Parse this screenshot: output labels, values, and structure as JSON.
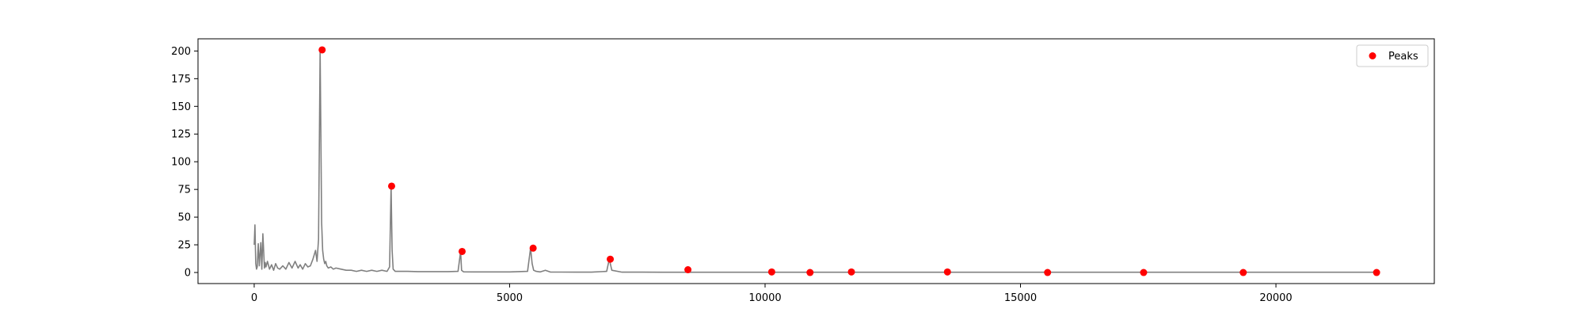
{
  "chart_data": {
    "type": "line",
    "title": "",
    "xlabel": "",
    "ylabel": "",
    "xlim": [
      -1100,
      23100
    ],
    "ylim": [
      -10,
      211
    ],
    "xticks": [
      0,
      5000,
      10000,
      15000,
      20000
    ],
    "yticks": [
      0,
      25,
      50,
      75,
      100,
      125,
      150,
      175,
      200
    ],
    "grid": false,
    "legend": {
      "position": "top-right",
      "entries": [
        "Peaks"
      ]
    },
    "series": [
      {
        "kind": "line",
        "color": "#808080",
        "x": [
          0,
          15,
          30,
          45,
          60,
          80,
          100,
          130,
          150,
          170,
          200,
          215,
          230,
          260,
          300,
          340,
          380,
          420,
          460,
          500,
          560,
          620,
          680,
          740,
          800,
          860,
          900,
          950,
          1000,
          1050,
          1100,
          1150,
          1200,
          1230,
          1260,
          1290,
          1320,
          1340,
          1360,
          1380,
          1400,
          1420,
          1450,
          1500,
          1550,
          1600,
          1700,
          1800,
          1900,
          2000,
          2100,
          2200,
          2300,
          2400,
          2500,
          2600,
          2650,
          2680,
          2700,
          2720,
          2760,
          2850,
          3000,
          3200,
          3500,
          3800,
          3990,
          4040,
          4060,
          4100,
          4300,
          4600,
          5000,
          5350,
          5410,
          5440,
          5470,
          5520,
          5600,
          5700,
          5800,
          6000,
          6300,
          6600,
          6900,
          6950,
          7000,
          7200,
          7600,
          8000,
          8400,
          9000,
          10000,
          11000,
          12000,
          13000,
          14000,
          15000,
          16000,
          17000,
          18000,
          19000,
          20000,
          21000,
          22000
        ],
        "y": [
          25,
          43,
          8,
          3,
          5,
          26,
          6,
          27,
          3,
          35,
          4,
          9,
          5,
          10,
          3,
          7,
          2,
          8,
          4,
          3,
          6,
          3,
          9,
          4,
          10,
          4,
          7,
          3,
          8,
          5,
          6,
          12,
          20,
          10,
          30,
          201,
          45,
          20,
          12,
          8,
          10,
          6,
          4,
          5,
          3,
          4,
          3,
          2,
          2,
          1,
          2,
          1,
          2,
          1,
          2,
          1,
          5,
          78,
          20,
          3,
          1,
          1,
          1,
          0.8,
          0.8,
          0.8,
          1,
          19,
          2,
          0.6,
          0.5,
          0.5,
          0.5,
          1,
          22,
          8,
          2,
          1,
          0.5,
          2,
          0.4,
          0.4,
          0.3,
          0.3,
          1,
          12,
          2,
          0.3,
          0.3,
          0.2,
          0.2,
          0.2,
          0.2,
          0.2,
          0.2,
          0.2,
          0.2,
          0.2,
          0.2,
          0.2,
          0.2,
          0.2,
          0.2,
          0.2,
          0.2
        ]
      },
      {
        "kind": "scatter",
        "name": "Peaks",
        "color": "#ff0000",
        "x": [
          1330,
          2690,
          4070,
          5460,
          6970,
          8490,
          10130,
          10880,
          11690,
          13570,
          15530,
          17410,
          19360,
          21970
        ],
        "y": [
          201,
          78,
          19,
          22,
          12,
          2.5,
          0.5,
          0,
          0.5,
          0.5,
          0,
          0,
          0,
          0
        ]
      }
    ]
  }
}
